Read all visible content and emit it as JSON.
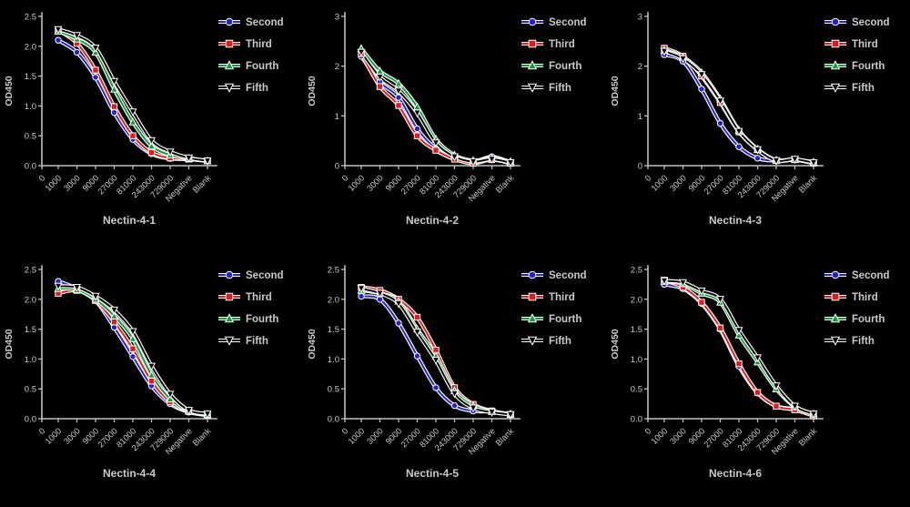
{
  "figure": {
    "background": "#000000",
    "text_color": "#c9c9c9",
    "axis_color": "#bfbfbf",
    "halo_color": "#ffffff",
    "legend_labels": [
      "Second",
      "Third",
      "Fourth",
      "Fifth"
    ],
    "series_colors": {
      "Second": "#2323cc",
      "Third": "#df1b1b",
      "Fourth": "#149c37",
      "Fifth": "#000000"
    },
    "series_markers": {
      "Second": "circle",
      "Third": "square",
      "Fourth": "triangle-up",
      "Fifth": "triangle-down"
    }
  },
  "chart_data": [
    {
      "type": "line",
      "title": "Nectin-4-1",
      "ylabel": "OD450",
      "xlabel": "",
      "origin_label": "0",
      "categories": [
        "1000",
        "3000",
        "9000",
        "27000",
        "81000",
        "243000",
        "729000",
        "Negative",
        "Blank"
      ],
      "ylim": [
        0,
        2.5
      ],
      "yticks": [
        "0.0",
        "0.5",
        "1.0",
        "1.5",
        "2.0",
        "2.5"
      ],
      "grid": false,
      "legend_position": "right",
      "series": [
        {
          "name": "Second",
          "color": "#2323cc",
          "marker": "circle",
          "values": [
            2.1,
            1.9,
            1.48,
            0.89,
            0.44,
            0.2,
            0.12,
            0.11,
            0.08
          ]
        },
        {
          "name": "Third",
          "color": "#df1b1b",
          "marker": "square",
          "values": [
            2.27,
            2.05,
            1.6,
            0.99,
            0.5,
            0.22,
            0.13,
            0.11,
            0.08
          ]
        },
        {
          "name": "Fourth",
          "color": "#149c37",
          "marker": "triangle-up",
          "values": [
            2.25,
            2.12,
            1.9,
            1.28,
            0.73,
            0.33,
            0.18,
            0.12,
            0.08
          ]
        },
        {
          "name": "Fifth",
          "color": "#000000",
          "marker": "triangle-down",
          "values": [
            2.28,
            2.18,
            1.97,
            1.41,
            0.9,
            0.42,
            0.23,
            0.13,
            0.08
          ]
        }
      ]
    },
    {
      "type": "line",
      "title": "Nectin-4-2",
      "ylabel": "OD450",
      "xlabel": "",
      "origin_label": "0",
      "categories": [
        "1000",
        "3000",
        "9000",
        "27000",
        "81000",
        "243000",
        "729000",
        "Negative",
        "Blank"
      ],
      "ylim": [
        0,
        3
      ],
      "yticks": [
        "0",
        "1",
        "2",
        "3"
      ],
      "grid": false,
      "legend_position": "right",
      "series": [
        {
          "name": "Second",
          "color": "#2323cc",
          "marker": "circle",
          "values": [
            2.2,
            1.68,
            1.37,
            0.74,
            0.34,
            0.15,
            0.08,
            0.18,
            0.06
          ]
        },
        {
          "name": "Third",
          "color": "#df1b1b",
          "marker": "square",
          "values": [
            2.25,
            1.59,
            1.21,
            0.6,
            0.31,
            0.13,
            0.05,
            0.12,
            0.05
          ]
        },
        {
          "name": "Fourth",
          "color": "#149c37",
          "marker": "triangle-up",
          "values": [
            2.35,
            1.9,
            1.65,
            1.18,
            0.53,
            0.21,
            0.1,
            0.15,
            0.08
          ]
        },
        {
          "name": "Fifth",
          "color": "#000000",
          "marker": "triangle-down",
          "values": [
            2.28,
            1.78,
            1.5,
            1.06,
            0.46,
            0.18,
            0.08,
            0.13,
            0.06
          ]
        }
      ]
    },
    {
      "type": "line",
      "title": "Nectin-4-3",
      "ylabel": "OD450",
      "xlabel": "",
      "origin_label": "0",
      "categories": [
        "1000",
        "3000",
        "9000",
        "27000",
        "81000",
        "243000",
        "729000",
        "Negative",
        "Blank"
      ],
      "ylim": [
        0,
        3
      ],
      "yticks": [
        "0",
        "1",
        "2",
        "3"
      ],
      "grid": false,
      "legend_position": "right",
      "series": [
        {
          "name": "Second",
          "color": "#2323cc",
          "marker": "circle",
          "values": [
            2.23,
            2.1,
            1.54,
            0.85,
            0.38,
            0.15,
            0.1,
            0.12,
            0.06
          ]
        },
        {
          "name": "Third",
          "color": "#df1b1b",
          "marker": "square",
          "values": [
            2.36,
            2.2,
            1.8,
            1.27,
            0.68,
            0.32,
            0.1,
            0.12,
            0.05
          ]
        },
        {
          "name": "Fourth",
          "color": "#149c37",
          "marker": "triangle-up",
          "values": [
            2.32,
            2.18,
            1.87,
            1.34,
            0.71,
            0.33,
            0.11,
            0.12,
            0.07
          ]
        },
        {
          "name": "Fifth",
          "color": "#000000",
          "marker": "triangle-down",
          "values": [
            2.3,
            2.15,
            1.83,
            1.3,
            0.69,
            0.32,
            0.1,
            0.13,
            0.06
          ]
        }
      ]
    },
    {
      "type": "line",
      "title": "Nectin-4-4",
      "ylabel": "OD450",
      "xlabel": "",
      "origin_label": "0",
      "categories": [
        "1000",
        "3000",
        "9000",
        "27000",
        "81000",
        "243000",
        "729000",
        "Negative",
        "Blank"
      ],
      "ylim": [
        0,
        2.5
      ],
      "yticks": [
        "0.0",
        "0.5",
        "1.0",
        "1.5",
        "2.0",
        "2.5"
      ],
      "grid": false,
      "legend_position": "right",
      "series": [
        {
          "name": "Second",
          "color": "#2323cc",
          "marker": "circle",
          "values": [
            2.3,
            2.18,
            1.98,
            1.53,
            1.04,
            0.55,
            0.25,
            0.11,
            0.06
          ]
        },
        {
          "name": "Third",
          "color": "#df1b1b",
          "marker": "square",
          "values": [
            2.1,
            2.15,
            1.98,
            1.62,
            1.17,
            0.63,
            0.28,
            0.12,
            0.06
          ]
        },
        {
          "name": "Fourth",
          "color": "#149c37",
          "marker": "triangle-up",
          "values": [
            2.18,
            2.16,
            2.0,
            1.72,
            1.34,
            0.73,
            0.33,
            0.13,
            0.07
          ]
        },
        {
          "name": "Fifth",
          "color": "#000000",
          "marker": "triangle-down",
          "values": [
            2.22,
            2.2,
            2.05,
            1.82,
            1.46,
            0.88,
            0.41,
            0.14,
            0.08
          ]
        }
      ]
    },
    {
      "type": "line",
      "title": "Nectin-4-5",
      "ylabel": "OD450",
      "xlabel": "",
      "origin_label": "0",
      "categories": [
        "1000",
        "3000",
        "9000",
        "27000",
        "81000",
        "243000",
        "729000",
        "Negative",
        "Blank"
      ],
      "ylim": [
        0,
        2.5
      ],
      "yticks": [
        "0.0",
        "0.5",
        "1.0",
        "1.5",
        "2.0",
        "2.5"
      ],
      "grid": false,
      "legend_position": "right",
      "series": [
        {
          "name": "Second",
          "color": "#2323cc",
          "marker": "circle",
          "values": [
            2.05,
            2.0,
            1.6,
            1.05,
            0.52,
            0.22,
            0.13,
            0.12,
            0.07
          ]
        },
        {
          "name": "Third",
          "color": "#df1b1b",
          "marker": "square",
          "values": [
            2.2,
            2.15,
            2.0,
            1.7,
            1.15,
            0.52,
            0.24,
            0.13,
            0.07
          ]
        },
        {
          "name": "Fourth",
          "color": "#149c37",
          "marker": "triangle-up",
          "values": [
            2.15,
            2.1,
            1.97,
            1.5,
            1.05,
            0.47,
            0.22,
            0.12,
            0.08
          ]
        },
        {
          "name": "Fifth",
          "color": "#000000",
          "marker": "triangle-down",
          "values": [
            2.18,
            2.1,
            1.93,
            1.45,
            0.98,
            0.42,
            0.18,
            0.11,
            0.07
          ]
        }
      ]
    },
    {
      "type": "line",
      "title": "Nectin-4-6",
      "ylabel": "OD450",
      "xlabel": "",
      "origin_label": "0",
      "categories": [
        "1000",
        "3000",
        "9000",
        "27000",
        "81000",
        "243000",
        "729000",
        "Negative",
        "Blank"
      ],
      "ylim": [
        0,
        2.5
      ],
      "yticks": [
        "0.0",
        "0.5",
        "1.0",
        "1.5",
        "2.0",
        "2.5"
      ],
      "grid": false,
      "legend_position": "right",
      "series": [
        {
          "name": "Second",
          "color": "#2323cc",
          "marker": "circle",
          "values": [
            2.25,
            2.18,
            1.93,
            1.5,
            0.88,
            0.43,
            0.21,
            0.16,
            0.05
          ]
        },
        {
          "name": "Third",
          "color": "#df1b1b",
          "marker": "square",
          "values": [
            2.32,
            2.2,
            1.95,
            1.52,
            0.92,
            0.44,
            0.21,
            0.15,
            0.05
          ]
        },
        {
          "name": "Fourth",
          "color": "#149c37",
          "marker": "triangle-up",
          "values": [
            2.3,
            2.26,
            2.1,
            1.95,
            1.4,
            0.95,
            0.5,
            0.2,
            0.08
          ]
        },
        {
          "name": "Fifth",
          "color": "#000000",
          "marker": "triangle-down",
          "values": [
            2.31,
            2.28,
            2.14,
            2.0,
            1.48,
            1.02,
            0.55,
            0.21,
            0.08
          ]
        }
      ]
    }
  ]
}
